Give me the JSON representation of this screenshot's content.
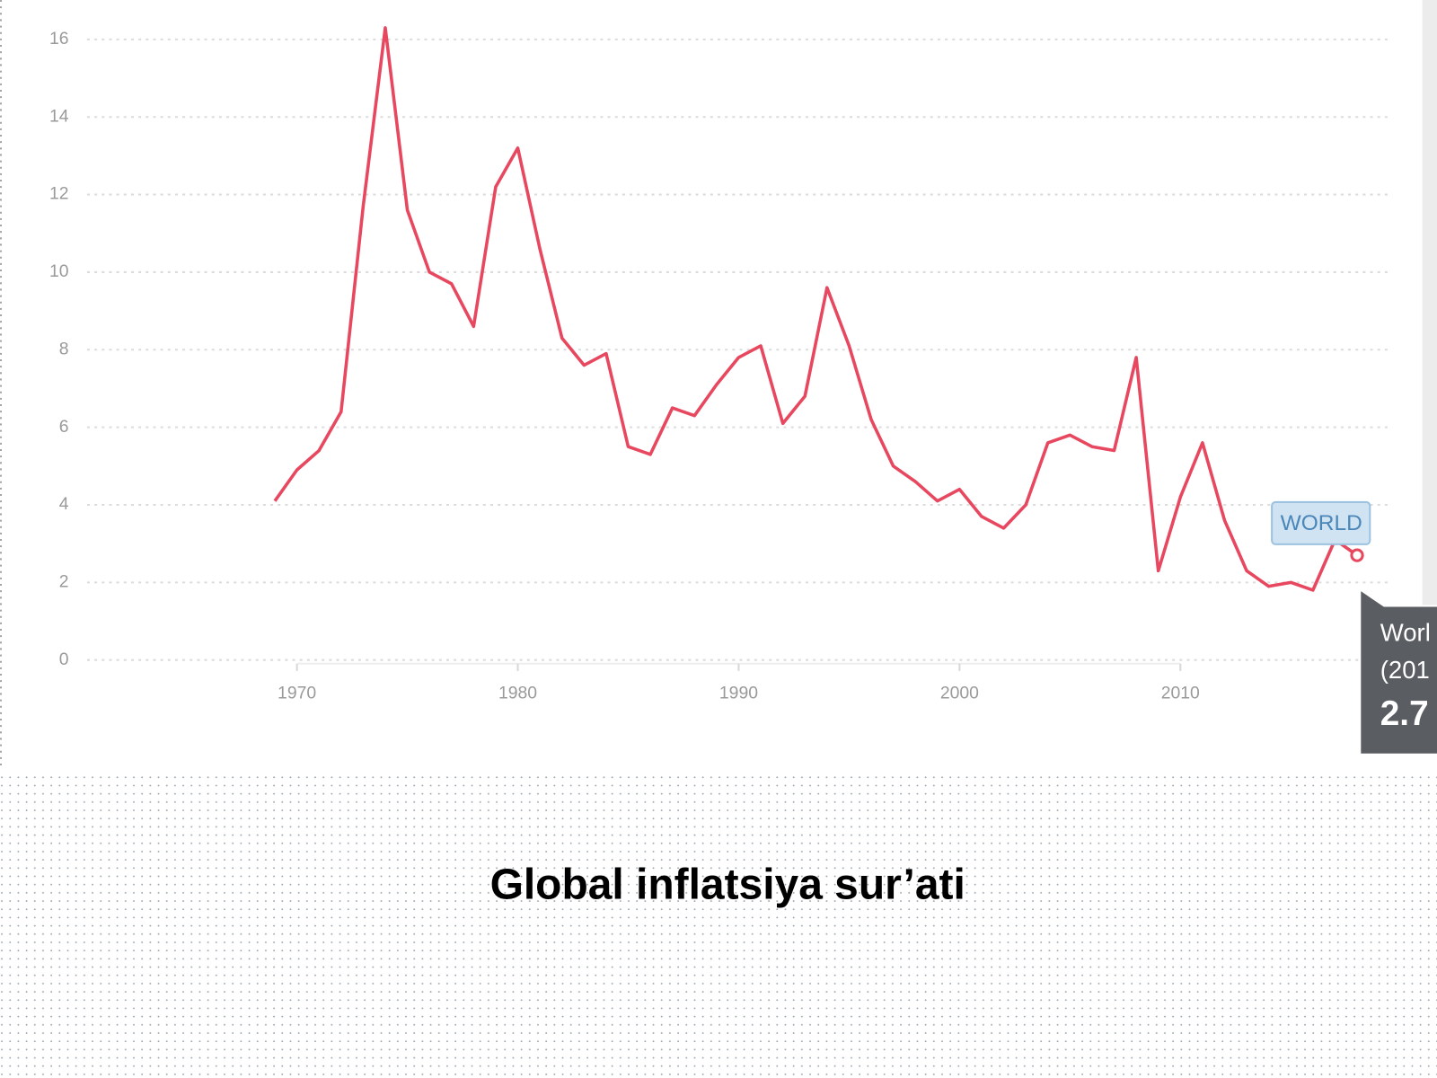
{
  "chart_data": {
    "type": "line",
    "title": "Global inflatsiya sur’ati",
    "x": [
      1969,
      1970,
      1971,
      1972,
      1973,
      1974,
      1975,
      1976,
      1977,
      1978,
      1979,
      1980,
      1981,
      1982,
      1983,
      1984,
      1985,
      1986,
      1987,
      1988,
      1989,
      1990,
      1991,
      1992,
      1993,
      1994,
      1995,
      1996,
      1997,
      1998,
      1999,
      2000,
      2001,
      2002,
      2003,
      2004,
      2005,
      2006,
      2007,
      2008,
      2009,
      2010,
      2011,
      2012,
      2013,
      2014,
      2015,
      2016,
      2017,
      2018
    ],
    "series": [
      {
        "name": "WORLD",
        "color": "#e8485f",
        "values": [
          4.1,
          4.9,
          5.4,
          6.4,
          11.7,
          16.3,
          11.6,
          10.0,
          9.7,
          8.6,
          12.2,
          13.2,
          10.6,
          8.3,
          7.6,
          7.9,
          5.5,
          5.3,
          6.5,
          6.3,
          7.1,
          7.8,
          8.1,
          6.1,
          6.8,
          9.6,
          8.1,
          6.2,
          5.0,
          4.6,
          4.1,
          4.4,
          3.7,
          3.4,
          4.0,
          5.6,
          5.8,
          5.5,
          5.4,
          7.8,
          2.3,
          4.2,
          5.6,
          3.6,
          2.3,
          1.9,
          2.0,
          1.8,
          3.1,
          2.7
        ]
      }
    ],
    "xlim": [
      1960,
      2020
    ],
    "xticks": [
      1970,
      1980,
      1990,
      2000,
      2010
    ],
    "ylim": [
      0,
      16
    ],
    "yticks": [
      0,
      2,
      4,
      6,
      8,
      10,
      12,
      14,
      16
    ],
    "grid": true,
    "tooltip": {
      "title": "Worl",
      "subtitle": "(201",
      "value": "2.7"
    }
  }
}
